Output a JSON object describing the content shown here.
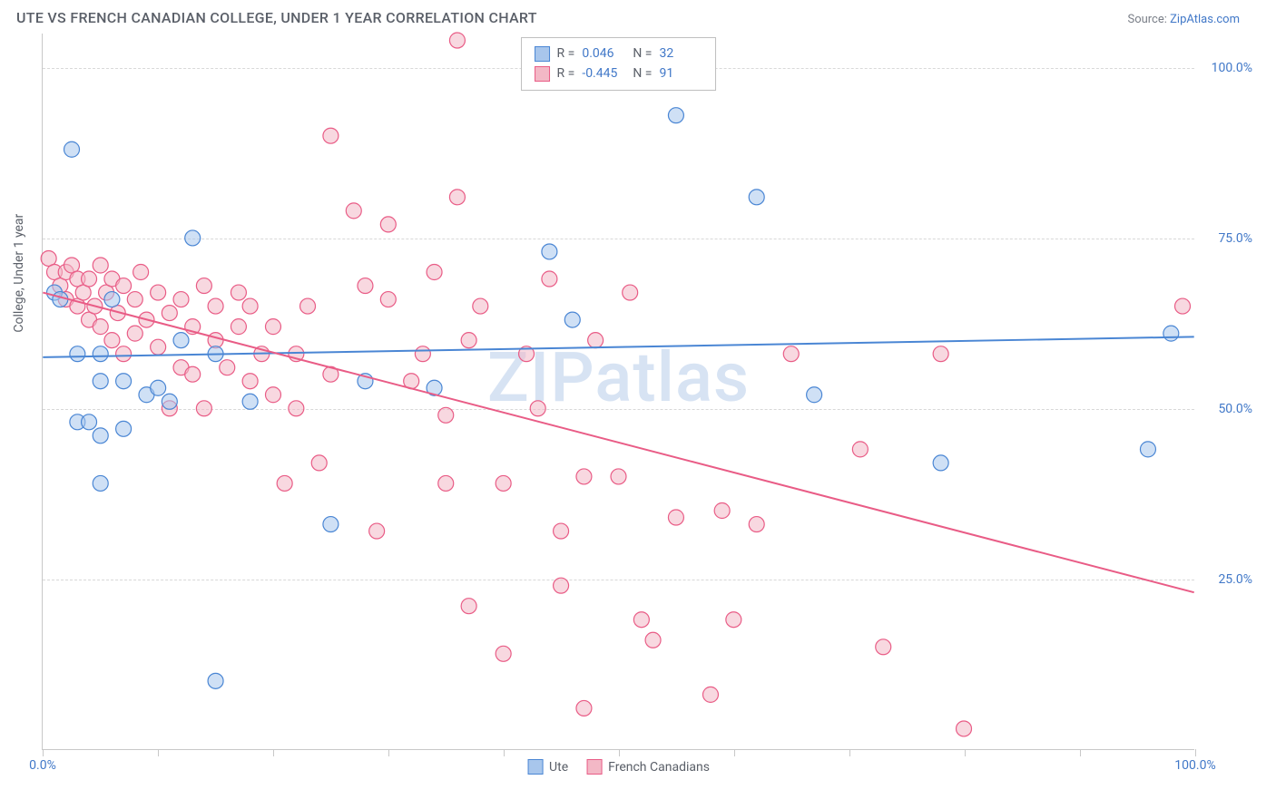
{
  "header": {
    "title": "UTE VS FRENCH CANADIAN COLLEGE, UNDER 1 YEAR CORRELATION CHART",
    "source_prefix": "Source: ",
    "source_link": "ZipAtlas.com"
  },
  "chart": {
    "type": "scatter",
    "ylabel": "College, Under 1 year",
    "watermark": "ZIPatlas",
    "background_color": "#ffffff",
    "grid_color": "#d8d8d8",
    "axis_color": "#c8c8c8",
    "text_color": "#5a5f68",
    "value_color": "#4178c8",
    "xlim": [
      0,
      100
    ],
    "ylim": [
      0,
      105
    ],
    "ytick_positions": [
      25,
      50,
      75,
      100
    ],
    "ytick_labels": [
      "25.0%",
      "50.0%",
      "75.0%",
      "100.0%"
    ],
    "xtick_positions": [
      0,
      10,
      20,
      30,
      40,
      50,
      60,
      70,
      80,
      90,
      100
    ],
    "xtick_labels": {
      "0": "0.0%",
      "100": "100.0%"
    },
    "marker_radius": 8.5,
    "marker_opacity": 0.55,
    "line_width": 2,
    "series": {
      "ute": {
        "label": "Ute",
        "fill_color": "#a8c6ec",
        "stroke_color": "#4a86d4",
        "R": "0.046",
        "N": "32",
        "trend": {
          "x1": 0,
          "y1": 57.5,
          "x2": 100,
          "y2": 60.5
        },
        "points": [
          {
            "x": 1,
            "y": 67
          },
          {
            "x": 1.5,
            "y": 66
          },
          {
            "x": 2.5,
            "y": 88
          },
          {
            "x": 3,
            "y": 58
          },
          {
            "x": 3,
            "y": 48
          },
          {
            "x": 4,
            "y": 48
          },
          {
            "x": 5,
            "y": 58
          },
          {
            "x": 5,
            "y": 54
          },
          {
            "x": 5,
            "y": 39
          },
          {
            "x": 5,
            "y": 46
          },
          {
            "x": 6,
            "y": 66
          },
          {
            "x": 7,
            "y": 54
          },
          {
            "x": 7,
            "y": 47
          },
          {
            "x": 9,
            "y": 52
          },
          {
            "x": 10,
            "y": 53
          },
          {
            "x": 11,
            "y": 51
          },
          {
            "x": 12,
            "y": 60
          },
          {
            "x": 13,
            "y": 75
          },
          {
            "x": 15,
            "y": 10
          },
          {
            "x": 15,
            "y": 58
          },
          {
            "x": 18,
            "y": 51
          },
          {
            "x": 25,
            "y": 33
          },
          {
            "x": 28,
            "y": 54
          },
          {
            "x": 34,
            "y": 53
          },
          {
            "x": 44,
            "y": 73
          },
          {
            "x": 46,
            "y": 63
          },
          {
            "x": 55,
            "y": 93
          },
          {
            "x": 62,
            "y": 81
          },
          {
            "x": 67,
            "y": 52
          },
          {
            "x": 78,
            "y": 42
          },
          {
            "x": 98,
            "y": 61
          },
          {
            "x": 96,
            "y": 44
          }
        ]
      },
      "french": {
        "label": "French Canadians",
        "fill_color": "#f3b8c6",
        "stroke_color": "#e95c86",
        "R": "-0.445",
        "N": "91",
        "trend": {
          "x1": 0,
          "y1": 67,
          "x2": 100,
          "y2": 23
        },
        "points": [
          {
            "x": 0.5,
            "y": 72
          },
          {
            "x": 1,
            "y": 70
          },
          {
            "x": 1.5,
            "y": 68
          },
          {
            "x": 2,
            "y": 70
          },
          {
            "x": 2,
            "y": 66
          },
          {
            "x": 2.5,
            "y": 71
          },
          {
            "x": 3,
            "y": 65
          },
          {
            "x": 3,
            "y": 69
          },
          {
            "x": 3.5,
            "y": 67
          },
          {
            "x": 4,
            "y": 69
          },
          {
            "x": 4,
            "y": 63
          },
          {
            "x": 4.5,
            "y": 65
          },
          {
            "x": 5,
            "y": 71
          },
          {
            "x": 5,
            "y": 62
          },
          {
            "x": 5.5,
            "y": 67
          },
          {
            "x": 6,
            "y": 69
          },
          {
            "x": 6,
            "y": 60
          },
          {
            "x": 6.5,
            "y": 64
          },
          {
            "x": 7,
            "y": 68
          },
          {
            "x": 7,
            "y": 58
          },
          {
            "x": 8,
            "y": 66
          },
          {
            "x": 8,
            "y": 61
          },
          {
            "x": 8.5,
            "y": 70
          },
          {
            "x": 9,
            "y": 63
          },
          {
            "x": 10,
            "y": 67
          },
          {
            "x": 10,
            "y": 59
          },
          {
            "x": 11,
            "y": 50
          },
          {
            "x": 11,
            "y": 64
          },
          {
            "x": 12,
            "y": 56
          },
          {
            "x": 12,
            "y": 66
          },
          {
            "x": 13,
            "y": 62
          },
          {
            "x": 13,
            "y": 55
          },
          {
            "x": 14,
            "y": 68
          },
          {
            "x": 14,
            "y": 50
          },
          {
            "x": 15,
            "y": 60
          },
          {
            "x": 15,
            "y": 65
          },
          {
            "x": 16,
            "y": 56
          },
          {
            "x": 17,
            "y": 62
          },
          {
            "x": 17,
            "y": 67
          },
          {
            "x": 18,
            "y": 54
          },
          {
            "x": 18,
            "y": 65
          },
          {
            "x": 19,
            "y": 58
          },
          {
            "x": 20,
            "y": 52
          },
          {
            "x": 20,
            "y": 62
          },
          {
            "x": 21,
            "y": 39
          },
          {
            "x": 22,
            "y": 50
          },
          {
            "x": 22,
            "y": 58
          },
          {
            "x": 23,
            "y": 65
          },
          {
            "x": 24,
            "y": 42
          },
          {
            "x": 25,
            "y": 55
          },
          {
            "x": 25,
            "y": 90
          },
          {
            "x": 27,
            "y": 79
          },
          {
            "x": 28,
            "y": 68
          },
          {
            "x": 29,
            "y": 32
          },
          {
            "x": 30,
            "y": 77
          },
          {
            "x": 30,
            "y": 66
          },
          {
            "x": 32,
            "y": 54
          },
          {
            "x": 33,
            "y": 58
          },
          {
            "x": 34,
            "y": 70
          },
          {
            "x": 35,
            "y": 39
          },
          {
            "x": 35,
            "y": 49
          },
          {
            "x": 36,
            "y": 104
          },
          {
            "x": 36,
            "y": 81
          },
          {
            "x": 37,
            "y": 60
          },
          {
            "x": 37,
            "y": 21
          },
          {
            "x": 38,
            "y": 65
          },
          {
            "x": 40,
            "y": 39
          },
          {
            "x": 40,
            "y": 14
          },
          {
            "x": 42,
            "y": 58
          },
          {
            "x": 43,
            "y": 50
          },
          {
            "x": 44,
            "y": 69
          },
          {
            "x": 45,
            "y": 32
          },
          {
            "x": 45,
            "y": 24
          },
          {
            "x": 47,
            "y": 40
          },
          {
            "x": 47,
            "y": 6
          },
          {
            "x": 48,
            "y": 60
          },
          {
            "x": 50,
            "y": 40
          },
          {
            "x": 51,
            "y": 67
          },
          {
            "x": 52,
            "y": 19
          },
          {
            "x": 53,
            "y": 16
          },
          {
            "x": 55,
            "y": 34
          },
          {
            "x": 58,
            "y": 8
          },
          {
            "x": 59,
            "y": 35
          },
          {
            "x": 60,
            "y": 19
          },
          {
            "x": 62,
            "y": 33
          },
          {
            "x": 65,
            "y": 58
          },
          {
            "x": 71,
            "y": 44
          },
          {
            "x": 73,
            "y": 15
          },
          {
            "x": 78,
            "y": 58
          },
          {
            "x": 80,
            "y": 3
          },
          {
            "x": 99,
            "y": 65
          }
        ]
      }
    }
  }
}
